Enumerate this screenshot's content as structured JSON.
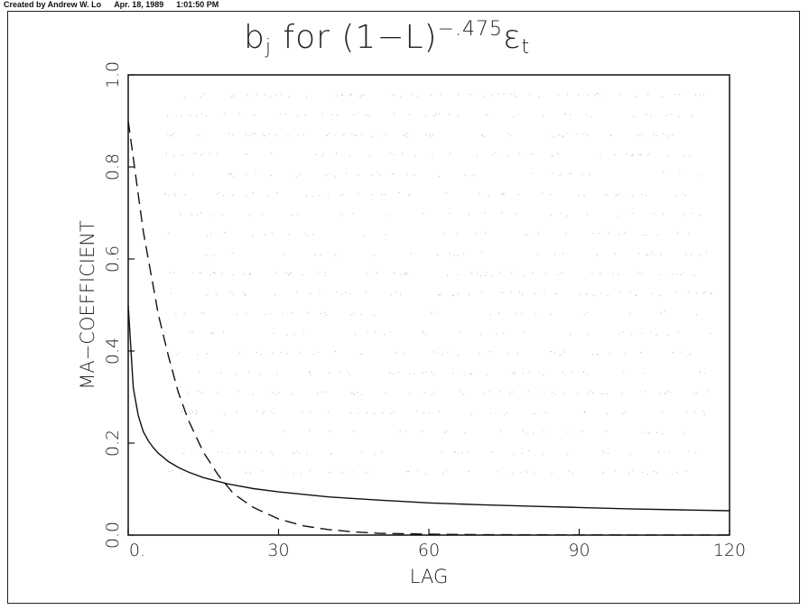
{
  "header": {
    "creator": "Created by Andrew W. Lo",
    "date": "Apr. 18, 1989",
    "time": "1:01:50 PM"
  },
  "chart_data": {
    "type": "line",
    "title": {
      "prefix": "b",
      "sub": "j",
      "middle": " for (1−L)",
      "sup": "−.475",
      "suffix": "ε",
      "suffix_sub": "t"
    },
    "xlabel": "LAG",
    "ylabel": "MA−COEFFICIENT",
    "xlim": [
      0,
      120
    ],
    "ylim": [
      0,
      1
    ],
    "x_ticks": [
      {
        "value": 0,
        "label": "0."
      },
      {
        "value": 30,
        "label": "30"
      },
      {
        "value": 60,
        "label": "60"
      },
      {
        "value": 90,
        "label": "90"
      },
      {
        "value": 120,
        "label": "120"
      }
    ],
    "y_ticks": [
      {
        "value": 0,
        "label": "0.0"
      },
      {
        "value": 0.2,
        "label": "0.2"
      },
      {
        "value": 0.4,
        "label": "0.4"
      },
      {
        "value": 0.6,
        "label": "0.6"
      },
      {
        "value": 0.8,
        "label": "0.8"
      },
      {
        "value": 1.0,
        "label": "1.0"
      }
    ],
    "grid": false,
    "series": [
      {
        "style": "solid",
        "x": [
          0,
          1,
          2,
          3,
          4,
          5,
          6,
          8,
          10,
          12,
          15,
          20,
          25,
          30,
          40,
          50,
          60,
          70,
          80,
          90,
          100,
          110,
          120
        ],
        "y": [
          0.5,
          0.32,
          0.26,
          0.225,
          0.205,
          0.19,
          0.178,
          0.16,
          0.147,
          0.137,
          0.125,
          0.111,
          0.101,
          0.094,
          0.083,
          0.076,
          0.07,
          0.066,
          0.063,
          0.06,
          0.057,
          0.055,
          0.053
        ]
      },
      {
        "style": "dashed",
        "x": [
          0,
          1,
          2,
          3,
          4,
          5,
          6,
          8,
          10,
          12,
          15,
          18,
          21,
          25,
          30,
          35,
          40,
          45,
          50,
          60,
          70,
          80,
          90,
          100,
          110,
          120
        ],
        "y": [
          0.9,
          0.82,
          0.74,
          0.66,
          0.6,
          0.54,
          0.48,
          0.39,
          0.31,
          0.25,
          0.18,
          0.13,
          0.09,
          0.06,
          0.035,
          0.02,
          0.012,
          0.007,
          0.004,
          0.002,
          0.001,
          0.0005,
          0.0003,
          0.0002,
          0.0001,
          0.0001
        ]
      }
    ]
  }
}
